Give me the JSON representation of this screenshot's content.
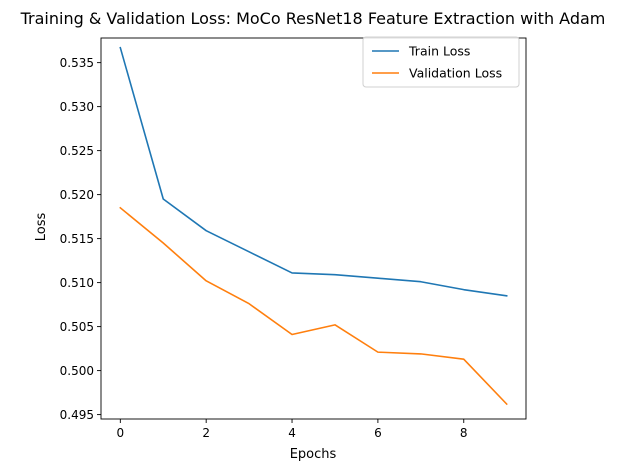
{
  "chart_data": {
    "type": "line",
    "title": "Training & Validation Loss: MoCo ResNet18 Feature Extraction with Adam",
    "xlabel": "Epochs",
    "ylabel": "Loss",
    "x": [
      0,
      1,
      2,
      3,
      4,
      5,
      6,
      7,
      8,
      9
    ],
    "xlim": [
      -0.45,
      9.45
    ],
    "ylim": [
      0.4945,
      0.5378
    ],
    "xticks": [
      0,
      2,
      4,
      6,
      8
    ],
    "xtick_labels": [
      "0",
      "2",
      "4",
      "6",
      "8"
    ],
    "yticks": [
      0.495,
      0.5,
      0.505,
      0.51,
      0.515,
      0.52,
      0.525,
      0.53,
      0.535
    ],
    "ytick_labels": [
      "0.495",
      "0.500",
      "0.505",
      "0.510",
      "0.515",
      "0.520",
      "0.525",
      "0.530",
      "0.535"
    ],
    "grid": false,
    "legend_position": "top-right",
    "series": [
      {
        "name": "Train Loss",
        "color": "#1f77b4",
        "values": [
          0.5367,
          0.5195,
          0.5159,
          0.5135,
          0.5111,
          0.5109,
          0.5105,
          0.5101,
          0.5092,
          0.5085
        ]
      },
      {
        "name": "Validation Loss",
        "color": "#ff7f0e",
        "values": [
          0.5185,
          0.5145,
          0.5102,
          0.5076,
          0.5041,
          0.5052,
          0.5021,
          0.5019,
          0.5013,
          0.4962
        ]
      }
    ]
  }
}
